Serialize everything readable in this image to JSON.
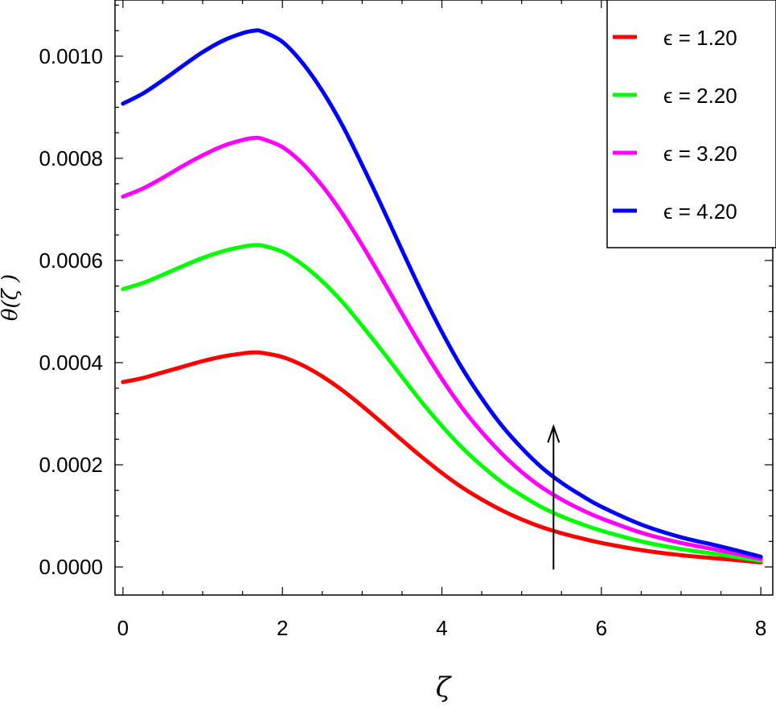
{
  "chart_data": {
    "type": "line",
    "xlabel": "ζ",
    "ylabel": "θ(ζ )",
    "xlim": [
      -0.1,
      8.15
    ],
    "ylim": [
      -5.5e-05,
      0.00111
    ],
    "xticks": [
      0,
      2,
      4,
      6,
      8
    ],
    "xtick_labels": [
      "0",
      "2",
      "4",
      "6",
      "8"
    ],
    "yticks": [
      0.0,
      0.0002,
      0.0004,
      0.0006,
      0.0008,
      0.001
    ],
    "ytick_labels": [
      "0.0000",
      "0.0002",
      "0.0004",
      "0.0006",
      "0.0008",
      "0.0010"
    ],
    "grid": false,
    "legend_position": "top-right",
    "x": [
      0,
      0.25,
      0.5,
      0.75,
      1.0,
      1.25,
      1.5,
      1.65,
      1.75,
      2.0,
      2.25,
      2.5,
      2.75,
      3.0,
      3.25,
      3.5,
      3.75,
      4.0,
      4.25,
      4.5,
      4.75,
      5.0,
      5.25,
      5.5,
      5.75,
      6.0,
      6.5,
      7.0,
      7.5,
      8.0
    ],
    "series": [
      {
        "name": "ϵ = 1.20",
        "color": "#ff0000",
        "values": [
          0.000362,
          0.00037,
          0.000381,
          0.000392,
          0.000403,
          0.000412,
          0.000418,
          0.00042,
          0.000419,
          0.000411,
          0.000395,
          0.000373,
          0.000346,
          0.000315,
          0.000282,
          0.000248,
          0.000215,
          0.000184,
          0.000156,
          0.000132,
          0.000111,
          9.3e-05,
          7.8e-05,
          6.6e-05,
          5.6e-05,
          4.7e-05,
          3.3e-05,
          2.3e-05,
          1.6e-05,
          9e-06
        ]
      },
      {
        "name": "ϵ = 2.20",
        "color": "#00ff00",
        "values": [
          0.000544,
          0.000556,
          0.000572,
          0.000589,
          0.000605,
          0.000618,
          0.000627,
          0.00063,
          0.000629,
          0.000617,
          0.000592,
          0.000559,
          0.000519,
          0.000472,
          0.000423,
          0.000372,
          0.000322,
          0.000276,
          0.000234,
          0.000198,
          0.000166,
          0.00014,
          0.000117,
          9.9e-05,
          8.4e-05,
          7.1e-05,
          5e-05,
          3.5e-05,
          2.4e-05,
          1.2e-05
        ]
      },
      {
        "name": "ϵ = 3.20",
        "color": "#ff00ff",
        "values": [
          0.000725,
          0.000741,
          0.000762,
          0.000785,
          0.000806,
          0.000824,
          0.000836,
          0.00084,
          0.000838,
          0.000822,
          0.00079,
          0.000746,
          0.000692,
          0.00063,
          0.000564,
          0.000496,
          0.00043,
          0.000368,
          0.000312,
          0.000264,
          0.000222,
          0.000186,
          0.000156,
          0.000132,
          0.000112,
          9.5e-05,
          6.7e-05,
          4.7e-05,
          3.2e-05,
          1.6e-05
        ]
      },
      {
        "name": "ϵ = 4.20",
        "color": "#0000ff",
        "values": [
          0.000907,
          0.000927,
          0.000953,
          0.000981,
          0.001008,
          0.00103,
          0.001045,
          0.00105,
          0.001048,
          0.001028,
          0.000987,
          0.000932,
          0.000865,
          0.000787,
          0.000705,
          0.00062,
          0.000537,
          0.00046,
          0.00039,
          0.00033,
          0.000277,
          0.000233,
          0.000195,
          0.000165,
          0.00014,
          0.000118,
          8.3e-05,
          5.8e-05,
          4e-05,
          2e-05
        ]
      }
    ],
    "annotations": [
      {
        "type": "arrow",
        "direction": "up",
        "x": 5.4,
        "y_from": -5e-06,
        "y_to": 0.000275,
        "color": "#000000"
      }
    ]
  }
}
